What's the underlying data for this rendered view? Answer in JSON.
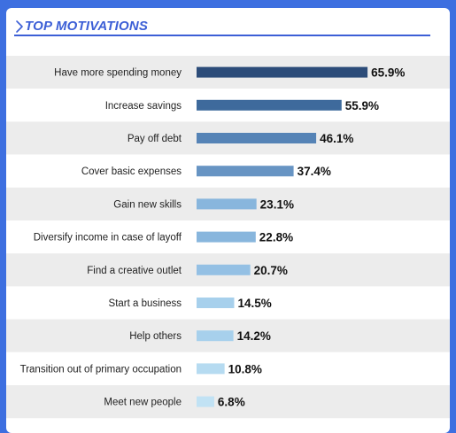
{
  "header": {
    "title": "TOP MOTIVATIONS",
    "accent_color": "#3c5fd6",
    "icon": "chevron-right-icon"
  },
  "chart_data": {
    "type": "bar",
    "orientation": "horizontal",
    "title": "TOP MOTIVATIONS",
    "xlabel": "",
    "ylabel": "",
    "xlim": [
      0,
      100
    ],
    "grid": false,
    "legend": "none",
    "value_suffix": "%",
    "categories": [
      "Have more spending money",
      "Increase savings",
      "Pay off debt",
      "Cover basic expenses",
      "Gain new skills",
      "Diversify income in case of layoff",
      "Find a creative outlet",
      "Start a business",
      "Help others",
      "Transition out of primary occupation",
      "Meet new people"
    ],
    "values": [
      65.9,
      55.9,
      46.1,
      37.4,
      23.1,
      22.8,
      20.7,
      14.5,
      14.2,
      10.8,
      6.8
    ],
    "bar_colors": [
      "#2c4c79",
      "#3e6a9c",
      "#5583b6",
      "#6794c3",
      "#88b6dd",
      "#88b6dd",
      "#94c0e4",
      "#a7d0ec",
      "#a7d0ec",
      "#b6dbf1",
      "#c1e2f4"
    ],
    "row_band_colors": [
      "#ececec",
      "#ffffff"
    ]
  }
}
